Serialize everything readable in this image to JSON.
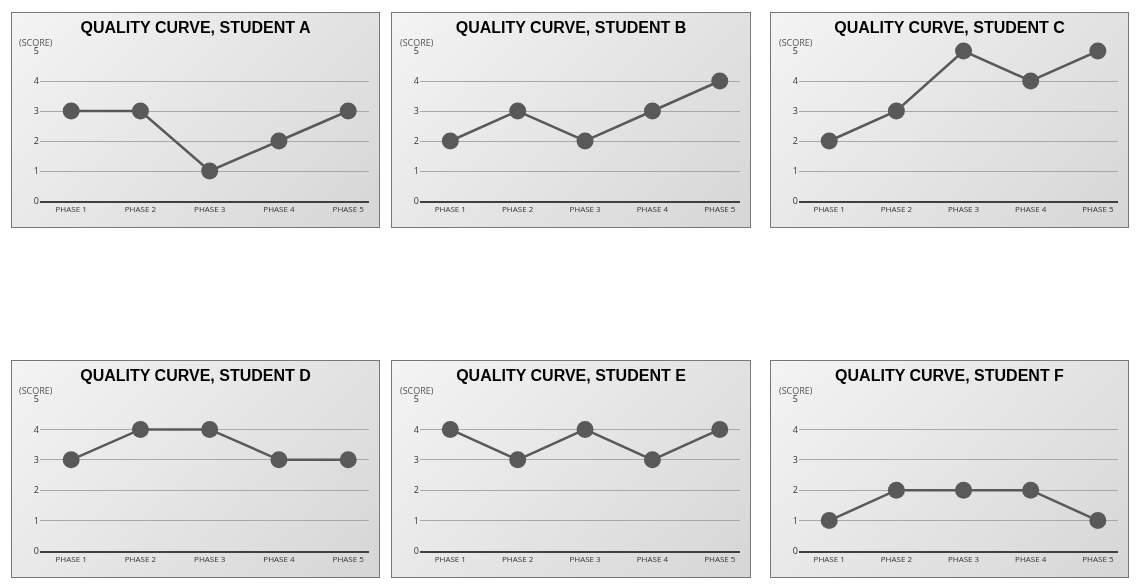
{
  "chart_data": [
    {
      "type": "line",
      "title": "QUALITY CURVE, STUDENT A",
      "ylabel": "(SCORE)",
      "categories": [
        "PHASE 1",
        "PHASE 2",
        "PHASE 3",
        "PHASE 4",
        "PHASE 5"
      ],
      "series": [
        {
          "color": "#595959",
          "values": [
            3,
            3,
            1,
            2,
            3
          ]
        }
      ],
      "ylim": [
        0,
        5
      ],
      "yticks": [
        0,
        1,
        2,
        3,
        4,
        5
      ],
      "grid": "y",
      "marker": "circle",
      "line_style": "solid"
    },
    {
      "type": "line",
      "title": "QUALITY CURVE, STUDENT B",
      "ylabel": "(SCORE)",
      "categories": [
        "PHASE 1",
        "PHASE 2",
        "PHASE 3",
        "PHASE 4",
        "PHASE 5"
      ],
      "series": [
        {
          "color": "#595959",
          "values": [
            2,
            3,
            2,
            3,
            4
          ]
        }
      ],
      "ylim": [
        0,
        5
      ],
      "yticks": [
        0,
        1,
        2,
        3,
        4,
        5
      ],
      "grid": "y",
      "marker": "circle",
      "line_style": "solid"
    },
    {
      "type": "line",
      "title": "QUALITY CURVE, STUDENT C",
      "ylabel": "(SCORE)",
      "categories": [
        "PHASE 1",
        "PHASE 2",
        "PHASE 3",
        "PHASE 4",
        "PHASE 5"
      ],
      "series": [
        {
          "color": "#595959",
          "values": [
            2,
            3,
            5,
            4,
            5
          ]
        }
      ],
      "ylim": [
        0,
        5
      ],
      "yticks": [
        0,
        1,
        2,
        3,
        4,
        5
      ],
      "grid": "y",
      "marker": "circle",
      "line_style": "solid"
    },
    {
      "type": "line",
      "title": "QUALITY CURVE, STUDENT D",
      "ylabel": "(SCORE)",
      "categories": [
        "PHASE 1",
        "PHASE 2",
        "PHASE 3",
        "PHASE 4",
        "PHASE 5"
      ],
      "series": [
        {
          "color": "#595959",
          "values": [
            3,
            4,
            4,
            3,
            3
          ]
        }
      ],
      "ylim": [
        0,
        5
      ],
      "yticks": [
        0,
        1,
        2,
        3,
        4,
        5
      ],
      "grid": "y",
      "marker": "circle",
      "line_style": "solid"
    },
    {
      "type": "line",
      "title": "QUALITY CURVE, STUDENT E",
      "ylabel": "(SCORE)",
      "categories": [
        "PHASE 1",
        "PHASE 2",
        "PHASE 3",
        "PHASE 4",
        "PHASE 5"
      ],
      "series": [
        {
          "color": "#595959",
          "values": [
            4,
            3,
            4,
            3,
            4
          ]
        }
      ],
      "ylim": [
        0,
        5
      ],
      "yticks": [
        0,
        1,
        2,
        3,
        4,
        5
      ],
      "grid": "y",
      "marker": "circle",
      "line_style": "solid"
    },
    {
      "type": "line",
      "title": "QUALITY CURVE, STUDENT F",
      "ylabel": "(SCORE)",
      "categories": [
        "PHASE 1",
        "PHASE 2",
        "PHASE 3",
        "PHASE 4",
        "PHASE 5"
      ],
      "series": [
        {
          "color": "#595959",
          "values": [
            1,
            2,
            2,
            2,
            1
          ]
        }
      ],
      "ylim": [
        0,
        5
      ],
      "yticks": [
        0,
        1,
        2,
        3,
        4,
        5
      ],
      "grid": "y",
      "marker": "circle",
      "line_style": "solid"
    }
  ]
}
